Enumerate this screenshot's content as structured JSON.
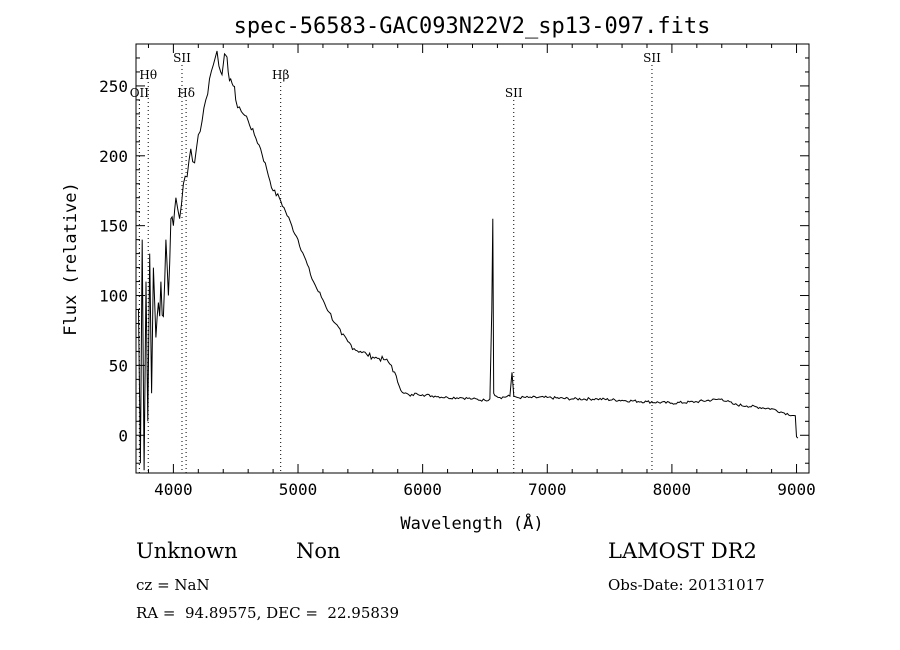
{
  "chart_data": {
    "type": "line",
    "title": "spec-56583-GAC093N22V2_sp13-097.fits",
    "xlabel": "Wavelength (Å)",
    "ylabel": "Flux (relative)",
    "xlim": [
      3700,
      9100
    ],
    "ylim": [
      -27,
      280
    ],
    "xticks": [
      4000,
      5000,
      6000,
      7000,
      8000,
      9000
    ],
    "yticks": [
      0,
      50,
      100,
      150,
      200,
      250
    ],
    "grid": false,
    "lines": [
      {
        "label": "OII",
        "x": 3727,
        "level": "low"
      },
      {
        "label": "Hθ",
        "x": 3798,
        "level": "mid"
      },
      {
        "label": "SII",
        "x": 4069,
        "level": "high"
      },
      {
        "label": "Hδ",
        "x": 4102,
        "level": "low"
      },
      {
        "label": "Hβ",
        "x": 4861,
        "level": "mid"
      },
      {
        "label": "SII",
        "x": 6731,
        "level": "low"
      },
      {
        "label": "SII",
        "x": 7840,
        "level": "high"
      }
    ],
    "series": [
      {
        "x": [
          3720,
          3735,
          3750,
          3765,
          3780,
          3795,
          3810,
          3825,
          3840,
          3860,
          3880,
          3900,
          3920,
          3940,
          3960,
          3980,
          4000,
          4020,
          4050,
          4080,
          4110,
          4140,
          4170,
          4200,
          4230,
          4260,
          4290,
          4320,
          4350,
          4380,
          4400,
          4420,
          4440,
          4460,
          4480,
          4500,
          4530,
          4560,
          4600,
          4650,
          4700,
          4750,
          4800,
          4850,
          4900,
          4950,
          5000,
          5050,
          5100,
          5150,
          5200,
          5250,
          5300,
          5350,
          5400,
          5450,
          5500,
          5550,
          5600,
          5650,
          5700,
          5750,
          5800,
          5850,
          5900,
          5950,
          6000,
          6100,
          6200,
          6300,
          6400,
          6500,
          6540,
          6555,
          6563,
          6570,
          6590,
          6620,
          6700,
          6717,
          6731,
          6760,
          6850,
          7000,
          7200,
          7400,
          7600,
          7800,
          8000,
          8200,
          8400,
          8500,
          8600,
          8800,
          8900,
          8990,
          9000,
          9010
        ],
        "y": [
          90,
          -20,
          140,
          -25,
          110,
          10,
          130,
          30,
          120,
          70,
          95,
          110,
          85,
          140,
          100,
          155,
          150,
          170,
          155,
          180,
          185,
          205,
          195,
          215,
          225,
          240,
          255,
          265,
          275,
          260,
          265,
          272,
          260,
          255,
          250,
          240,
          235,
          230,
          225,
          215,
          205,
          190,
          175,
          170,
          160,
          150,
          140,
          128,
          115,
          105,
          97,
          88,
          80,
          72,
          67,
          62,
          60,
          58,
          56,
          55,
          54,
          50,
          38,
          30,
          28,
          30,
          29,
          28,
          27,
          27,
          26,
          25,
          26,
          90,
          155,
          30,
          28,
          27,
          28,
          45,
          28,
          27,
          27,
          27,
          26,
          26,
          25,
          24,
          23,
          24,
          26,
          22,
          21,
          19,
          16,
          14,
          -1,
          -2
        ]
      }
    ]
  },
  "info": {
    "class": "Unknown",
    "subclass": "Non",
    "survey": "LAMOST DR2",
    "cz": "cz = NaN",
    "obs_date": "Obs-Date: 20131017",
    "radec": "RA =  94.89575, DEC =  22.95839"
  }
}
